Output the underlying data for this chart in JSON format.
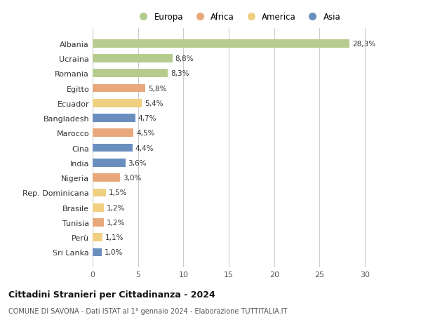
{
  "countries": [
    "Albania",
    "Ucraina",
    "Romania",
    "Egitto",
    "Ecuador",
    "Bangladesh",
    "Marocco",
    "Cina",
    "India",
    "Nigeria",
    "Rep. Dominicana",
    "Brasile",
    "Tunisia",
    "Perù",
    "Sri Lanka"
  ],
  "values": [
    28.3,
    8.8,
    8.3,
    5.8,
    5.4,
    4.7,
    4.5,
    4.4,
    3.6,
    3.0,
    1.5,
    1.2,
    1.2,
    1.1,
    1.0
  ],
  "labels": [
    "28,3%",
    "8,8%",
    "8,3%",
    "5,8%",
    "5,4%",
    "4,7%",
    "4,5%",
    "4,4%",
    "3,6%",
    "3,0%",
    "1,5%",
    "1,2%",
    "1,2%",
    "1,1%",
    "1,0%"
  ],
  "continents": [
    "Europa",
    "Europa",
    "Europa",
    "Africa",
    "America",
    "Asia",
    "Africa",
    "Asia",
    "Asia",
    "Africa",
    "America",
    "America",
    "Africa",
    "America",
    "Asia"
  ],
  "colors": {
    "Europa": "#b5cc8e",
    "Africa": "#e8a87c",
    "America": "#f0d080",
    "Asia": "#6a8fbf"
  },
  "legend_order": [
    "Europa",
    "Africa",
    "America",
    "Asia"
  ],
  "title": "Cittadini Stranieri per Cittadinanza - 2024",
  "subtitle1": "COMUNE DI SAVONA - Dati ISTAT al 1° gennaio 2024 - Elaborazione TUTTITALIA.IT",
  "xlim": [
    0,
    32
  ],
  "xticks": [
    0,
    5,
    10,
    15,
    20,
    25,
    30
  ],
  "bg_color": "#ffffff",
  "grid_color": "#cccccc",
  "bar_height": 0.55
}
